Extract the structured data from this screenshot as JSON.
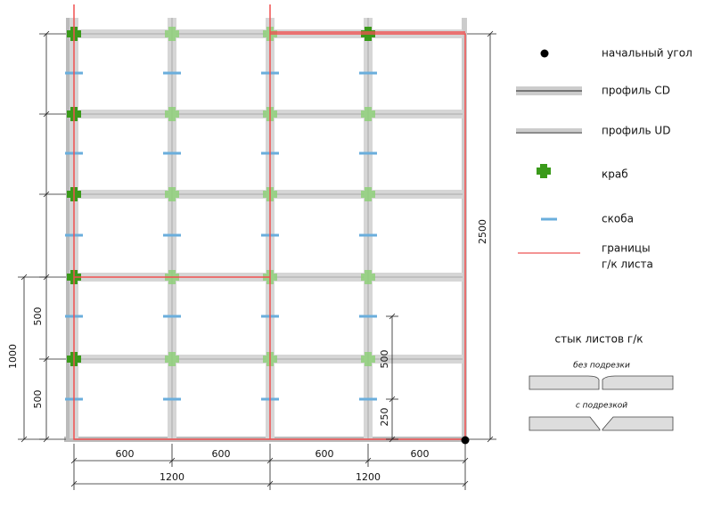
{
  "legend": {
    "start_corner": "начальный угол",
    "profile_cd": "профиль CD",
    "profile_ud": "профиль UD",
    "crab": "краб",
    "bracket": "скоба",
    "border_line1": "границы",
    "border_line2": "г/к листа"
  },
  "dimensions": {
    "left_lower": "500",
    "left_upper": "500",
    "left_total": "1000",
    "right_total": "2500",
    "inner_upper": "500",
    "inner_lower": "250",
    "bottom": [
      "600",
      "600",
      "600",
      "600"
    ],
    "bottom_total": [
      "1200",
      "1200"
    ]
  },
  "joint": {
    "title": "стык листов г/к",
    "no_cut": "без подрезки",
    "with_cut": "с подрезкой"
  }
}
